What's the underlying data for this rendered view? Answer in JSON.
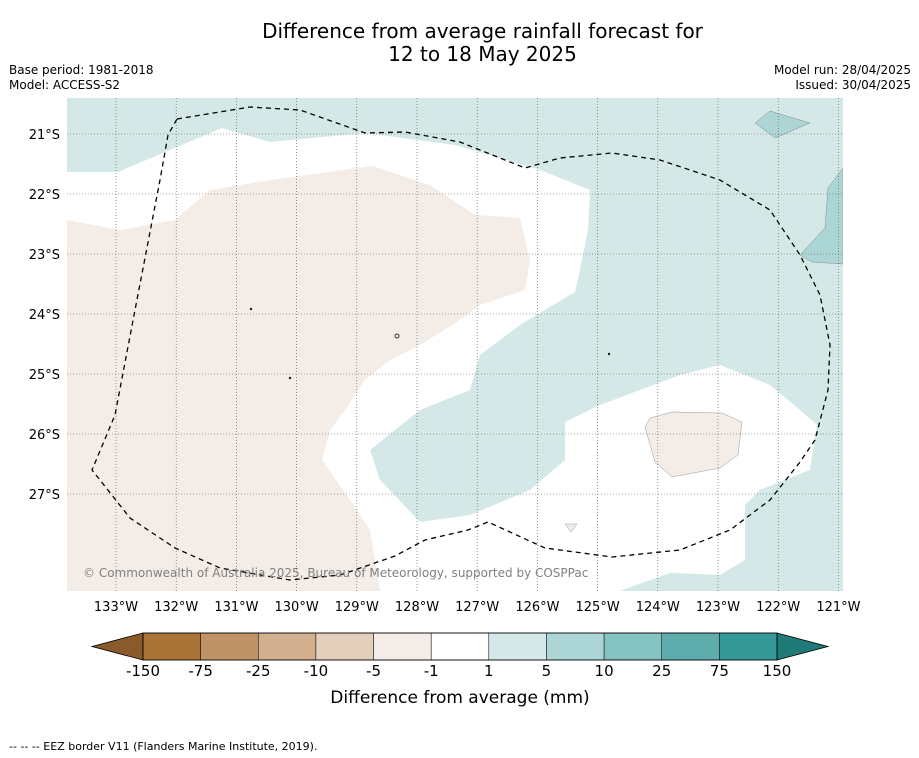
{
  "title": {
    "line1": "Difference from average rainfall forecast for",
    "line2": "12 to 18 May 2025"
  },
  "meta": {
    "base_period": "Base period: 1981-2018",
    "model": "Model: ACCESS-S2",
    "model_run": "Model run: 28/04/2025",
    "issued": "Issued: 30/04/2025"
  },
  "map": {
    "copyright": "© Commonwealth of Australia 2025, Bureau of Meteorology, supported by COSPPac",
    "lon_ticks": [
      "133°W",
      "132°W",
      "131°W",
      "130°W",
      "129°W",
      "128°W",
      "127°W",
      "126°W",
      "125°W",
      "124°W",
      "123°W",
      "122°W",
      "121°W"
    ],
    "lat_ticks": [
      "21°S",
      "22°S",
      "23°S",
      "24°S",
      "25°S",
      "26°S",
      "27°S"
    ]
  },
  "legend": {
    "label": "Difference from average (mm)",
    "ticks": [
      "-150",
      "-75",
      "-25",
      "-10",
      "-5",
      "-1",
      "1",
      "5",
      "10",
      "25",
      "75",
      "150"
    ],
    "colors": [
      "#ab7437",
      "#c09366",
      "#d2b08f",
      "#e3cfbc",
      "#f4ede7",
      "#ffffff",
      "#d4e9e7",
      "#acd6d5",
      "#85c3c2",
      "#5eadac",
      "#359998"
    ],
    "under_color": "#8b5a2b",
    "over_color": "#1f7a78"
  },
  "footer": {
    "eez_note": "--  --  -- EEZ border V11 (Flanders Marine Institute, 2019)."
  }
}
